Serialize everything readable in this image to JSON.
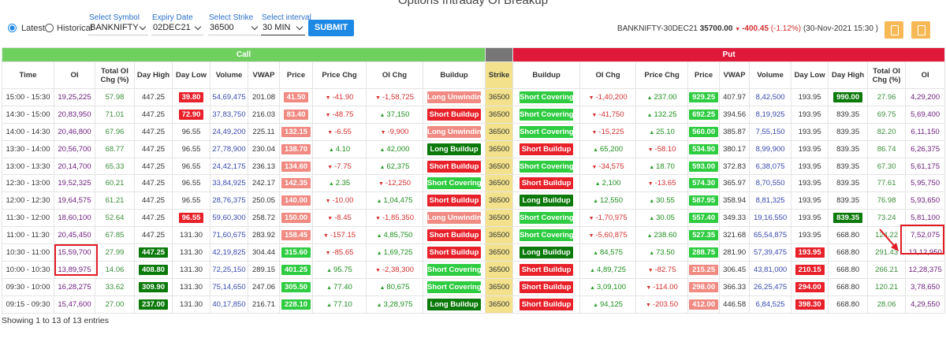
{
  "title": "Options Intraday OI Breakup",
  "controls": {
    "modes": [
      "Latest",
      "Historical"
    ],
    "symbol": {
      "label": "Select Symbol",
      "value": "BANKNIFTY"
    },
    "expiry": {
      "label": "Expiry Date",
      "value": "02DEC21"
    },
    "strike": {
      "label": "Select Strike",
      "value": "36500"
    },
    "interval": {
      "label": "Select interval",
      "value": "30 MIN"
    },
    "submit": "SUBMIT"
  },
  "quote": {
    "instrument": "BANKNIFTY-30DEC21",
    "price": "35700.00",
    "change": "-400.45",
    "change_pct": "(-1.12%)",
    "timestamp": "(30-Nov-2021 15:30 )"
  },
  "table": {
    "groups": [
      "Call",
      "Put"
    ],
    "columns": [
      "Time",
      "OI",
      "Total OI Chg (%)",
      "Day High",
      "Day Low",
      "Volume",
      "VWAP",
      "Price",
      "Price Chg",
      "OI Chg",
      "Buildup",
      "Strike",
      "Buildup",
      "OI Chg",
      "Price Chg",
      "Price",
      "VWAP",
      "Volume",
      "Day Low",
      "Day High",
      "Total OI Chg (%)",
      "OI"
    ],
    "rows": [
      [
        "15:00 - 15:30",
        "19,25,225",
        "57.98",
        "447.25",
        "39.80",
        "54,69,475",
        "201.08",
        "41.50",
        "-41.90",
        "-1,58,725",
        "Long Unwinding",
        "36500",
        "Short Covering",
        "-1,40,200",
        "237.00",
        "929.25",
        "407.97",
        "8,42,500",
        "193.95",
        "990.00",
        "27.96",
        "4,29,200"
      ],
      [
        "14:30 - 15:00",
        "20,83,950",
        "71.01",
        "447.25",
        "72.90",
        "37,83,750",
        "216.03",
        "83.40",
        "-48.75",
        "37,150",
        "Short Buildup",
        "36500",
        "Short Covering",
        "-41,750",
        "132.25",
        "692.25",
        "394.56",
        "8,19,925",
        "193.95",
        "839.35",
        "69.75",
        "5,69,400"
      ],
      [
        "14:00 - 14:30",
        "20,46,800",
        "67.96",
        "447.25",
        "96.55",
        "24,49,200",
        "225.11",
        "132.15",
        "-6.55",
        "-9,900",
        "Long Unwinding",
        "36500",
        "Short Covering",
        "-15,225",
        "25.10",
        "560.00",
        "385.87",
        "7,55,150",
        "193.95",
        "839.35",
        "82.20",
        "6,11,150"
      ],
      [
        "13:30 - 14:00",
        "20,56,700",
        "68.77",
        "447.25",
        "96.55",
        "27,78,900",
        "230.04",
        "138.70",
        "4.10",
        "42,000",
        "Long Buildup",
        "36500",
        "Short Buildup",
        "65,200",
        "-58.10",
        "534.90",
        "380.17",
        "8,99,900",
        "193.95",
        "839.35",
        "86.74",
        "6,26,375"
      ],
      [
        "13:00 - 13:30",
        "20,14,700",
        "65.33",
        "447.25",
        "96.55",
        "24,42,175",
        "236.13",
        "134.60",
        "-7.75",
        "62,375",
        "Short Buildup",
        "36500",
        "Short Covering",
        "-34,575",
        "18.70",
        "593.00",
        "372.83",
        "6,38,075",
        "193.95",
        "839.35",
        "67.30",
        "5,61,175"
      ],
      [
        "12:30 - 13:00",
        "19,52,325",
        "60.21",
        "447.25",
        "96.55",
        "33,84,925",
        "242.17",
        "142.35",
        "2.35",
        "-12,250",
        "Short Covering",
        "36500",
        "Short Buildup",
        "2,100",
        "-13.65",
        "574.30",
        "365.97",
        "8,70,550",
        "193.95",
        "839.35",
        "77.61",
        "5,95,750"
      ],
      [
        "12:00 - 12:30",
        "19,64,575",
        "61.21",
        "447.25",
        "96.55",
        "28,76,375",
        "250.05",
        "140.00",
        "-10.00",
        "1,04,475",
        "Short Buildup",
        "36500",
        "Long Buildup",
        "12,550",
        "30.55",
        "587.95",
        "358.94",
        "8,81,325",
        "193.95",
        "839.35",
        "76.98",
        "5,93,650"
      ],
      [
        "11:30 - 12:00",
        "18,60,100",
        "52.64",
        "447.25",
        "96.55",
        "59,60,300",
        "258.72",
        "150.00",
        "-8.45",
        "-1,85,350",
        "Long Unwinding",
        "36500",
        "Short Covering",
        "-1,70,975",
        "30.05",
        "557.40",
        "349.33",
        "19,16,550",
        "193.95",
        "839.35",
        "73.24",
        "5,81,100"
      ],
      [
        "11:00 - 11:30",
        "20,45,450",
        "67.85",
        "447.25",
        "131.30",
        "71,60,675",
        "283.92",
        "158.45",
        "-157.15",
        "4,85,750",
        "Short Buildup",
        "36500",
        "Short Covering",
        "-5,60,875",
        "238.60",
        "527.35",
        "321.68",
        "65,54,875",
        "193.95",
        "668.80",
        "124.22",
        "7,52,075"
      ],
      [
        "10:30 - 11:00",
        "15,59,700",
        "27.99",
        "447.25",
        "131.30",
        "42,19,825",
        "304.44",
        "315.60",
        "-85.65",
        "1,69,725",
        "Short Buildup",
        "36500",
        "Long Buildup",
        "84,575",
        "73.50",
        "288.75",
        "281.90",
        "57,39,475",
        "193.95",
        "668.80",
        "291.43",
        "13,12,950"
      ],
      [
        "10:00 - 10:30",
        "13,89,975",
        "14.06",
        "408.80",
        "131.30",
        "72,25,150",
        "289.15",
        "401.25",
        "95.75",
        "-2,38,300",
        "Short Covering",
        "36500",
        "Short Buildup",
        "4,89,725",
        "-82.75",
        "215.25",
        "306.45",
        "43,81,000",
        "210.15",
        "668.80",
        "266.21",
        "12,28,375"
      ],
      [
        "09:30 - 10:00",
        "16,28,275",
        "33.62",
        "309.90",
        "131.30",
        "75,14,650",
        "247.06",
        "305.50",
        "77.40",
        "80,675",
        "Short Covering",
        "36500",
        "Short Buildup",
        "3,09,100",
        "-114.00",
        "298.00",
        "366.33",
        "26,25,475",
        "294.00",
        "668.80",
        "120.21",
        "3,78,650"
      ],
      [
        "09:15 - 09:30",
        "15,47,600",
        "27.00",
        "237.00",
        "131.30",
        "40,17,850",
        "216.71",
        "228.10",
        "77.10",
        "3,28,975",
        "Long Buildup",
        "36500",
        "Short Buildup",
        "94,125",
        "-203.50",
        "412.00",
        "446.58",
        "6,84,525",
        "398.30",
        "668.80",
        "28.06",
        "4,29,550"
      ]
    ]
  },
  "footer": "Showing 1 to 13 of 13 entries"
}
